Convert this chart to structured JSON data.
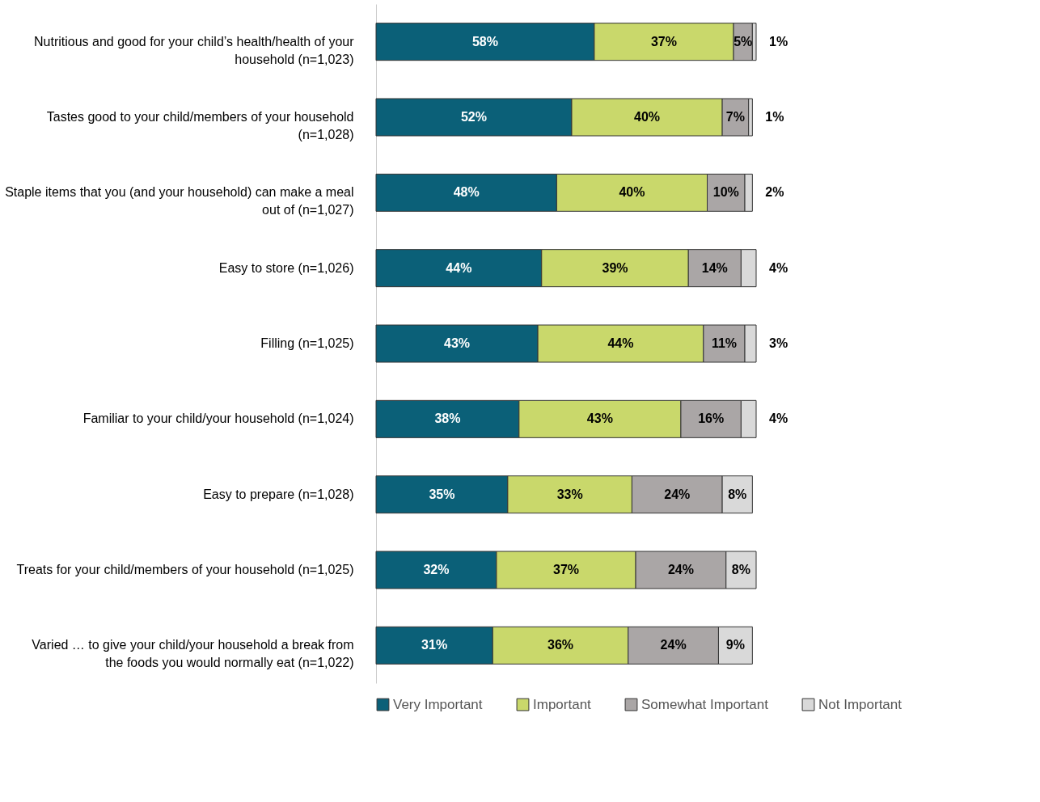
{
  "chart_data": {
    "type": "bar",
    "orientation": "horizontal",
    "stacked": true,
    "legend": "bottom",
    "grid": false,
    "tick_labels": "y",
    "categories": [
      "Nutritious and good for your child’s health/health of your household (n=1,023)",
      "Tastes good to your child/members of your household (n=1,028)",
      "Staple items that you (and your household) can make a meal out of (n=1,027)",
      "Easy to store (n=1,026)",
      "Filling (n=1,025)",
      "Familiar to your child/your household (n=1,024)",
      "Easy to prepare (n=1,028)",
      "Treats for your child/members of your household (n=1,025)",
      "Varied … to give your child/your household a break from the foods you would normally eat (n=1,022)"
    ],
    "series": [
      {
        "name": "Very Important",
        "color": "#0b6078",
        "values": [
          58,
          52,
          48,
          44,
          43,
          38,
          35,
          32,
          31
        ],
        "value_labels": [
          "58%",
          "52%",
          "48%",
          "44%",
          "43%",
          "38%",
          "35%",
          "32%",
          "31%"
        ]
      },
      {
        "name": "Important",
        "color": "#c9d86b",
        "values": [
          37,
          40,
          40,
          39,
          44,
          43,
          33,
          37,
          36
        ],
        "value_labels": [
          "37%",
          "40%",
          "40%",
          "39%",
          "44%",
          "43%",
          "33%",
          "37%",
          "36%"
        ]
      },
      {
        "name": "Somewhat Important",
        "color": "#aaa6a6",
        "values": [
          5,
          7,
          10,
          14,
          11,
          16,
          24,
          24,
          24
        ],
        "value_labels": [
          "5%",
          "7%",
          "10%",
          "14%",
          "11%",
          "16%",
          "24%",
          "24%",
          "24%"
        ]
      },
      {
        "name": "Not Important",
        "color": "#d9d9d9",
        "values": [
          1,
          1,
          2,
          4,
          3,
          4,
          8,
          8,
          9
        ],
        "value_labels": [
          "1%",
          "1%",
          "2%",
          "4%",
          "3%",
          "4%",
          "8%",
          "8%",
          "9%"
        ]
      }
    ]
  }
}
